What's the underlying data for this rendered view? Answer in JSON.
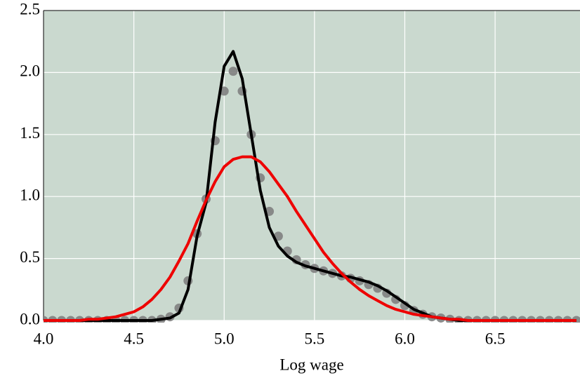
{
  "chart_data": {
    "type": "line",
    "x_label": "Log wage",
    "x": [
      4.0,
      4.05,
      4.1,
      4.15,
      4.2,
      4.25,
      4.3,
      4.35,
      4.4,
      4.45,
      4.5,
      4.55,
      4.6,
      4.65,
      4.7,
      4.75,
      4.8,
      4.85,
      4.9,
      4.95,
      5.0,
      5.05,
      5.1,
      5.15,
      5.2,
      5.25,
      5.3,
      5.35,
      5.4,
      5.45,
      5.5,
      5.55,
      5.6,
      5.65,
      5.7,
      5.75,
      5.8,
      5.85,
      5.9,
      5.95,
      6.0,
      6.05,
      6.1,
      6.15,
      6.2,
      6.25,
      6.3,
      6.35,
      6.4,
      6.45,
      6.5,
      6.55,
      6.6,
      6.65,
      6.7,
      6.75,
      6.8,
      6.85,
      6.9,
      6.95
    ],
    "series": [
      {
        "color": "#808080",
        "style": "markers",
        "values": [
          0,
          0,
          0,
          0,
          0,
          0,
          0,
          0,
          0,
          0,
          0,
          0,
          0,
          0.01,
          0.03,
          0.1,
          0.32,
          0.7,
          0.98,
          1.45,
          1.85,
          2.01,
          1.85,
          1.5,
          1.15,
          0.88,
          0.68,
          0.56,
          0.49,
          0.45,
          0.42,
          0.4,
          0.38,
          0.36,
          0.34,
          0.32,
          0.29,
          0.26,
          0.22,
          0.17,
          0.12,
          0.08,
          0.05,
          0.03,
          0.02,
          0.01,
          0,
          0,
          0,
          0,
          0,
          0,
          0,
          0,
          0,
          0,
          0,
          0,
          0,
          0
        ]
      },
      {
        "color": "#000000",
        "style": "line",
        "values": [
          0,
          0,
          0,
          0,
          0,
          0,
          0,
          0,
          0,
          0,
          0,
          0,
          0,
          0.01,
          0.02,
          0.06,
          0.25,
          0.68,
          0.95,
          1.6,
          2.05,
          2.17,
          1.95,
          1.5,
          1.05,
          0.75,
          0.6,
          0.52,
          0.47,
          0.44,
          0.42,
          0.4,
          0.38,
          0.36,
          0.35,
          0.33,
          0.31,
          0.28,
          0.24,
          0.19,
          0.14,
          0.09,
          0.06,
          0.03,
          0.02,
          0.01,
          0,
          0,
          0,
          0,
          0,
          0,
          0,
          0,
          0,
          0,
          0,
          0,
          0,
          0
        ]
      },
      {
        "color": "#ee0000",
        "style": "line",
        "values": [
          0,
          0,
          0,
          0,
          0,
          0.01,
          0.01,
          0.02,
          0.03,
          0.05,
          0.07,
          0.11,
          0.17,
          0.25,
          0.35,
          0.48,
          0.62,
          0.8,
          0.97,
          1.12,
          1.24,
          1.3,
          1.32,
          1.32,
          1.28,
          1.2,
          1.1,
          1.0,
          0.88,
          0.77,
          0.66,
          0.55,
          0.46,
          0.38,
          0.31,
          0.25,
          0.2,
          0.16,
          0.12,
          0.09,
          0.07,
          0.05,
          0.04,
          0.03,
          0.02,
          0.01,
          0.01,
          0,
          0,
          0,
          0,
          0,
          0,
          0,
          0,
          0,
          0,
          0,
          0,
          0
        ]
      }
    ],
    "xlim": [
      4.0,
      6.97
    ],
    "ylim": [
      0,
      2.5
    ],
    "xticks": [
      {
        "value": 4.0,
        "label": "4.0"
      },
      {
        "value": 4.5,
        "label": "4.5"
      },
      {
        "value": 5.0,
        "label": "5.0"
      },
      {
        "value": 5.5,
        "label": "5.5"
      },
      {
        "value": 6.0,
        "label": "6.0"
      },
      {
        "value": 6.5,
        "label": "6.5"
      }
    ],
    "yticks": [
      {
        "value": 0,
        "label": "0.0"
      },
      {
        "value": 0.5,
        "label": "0.5"
      },
      {
        "value": 1.0,
        "label": "1.0"
      },
      {
        "value": 1.5,
        "label": "1.5"
      },
      {
        "value": 2.0,
        "label": "2.0"
      },
      {
        "value": 2.5,
        "label": "2.5"
      }
    ],
    "grid": true,
    "background": "#cad9cf"
  }
}
